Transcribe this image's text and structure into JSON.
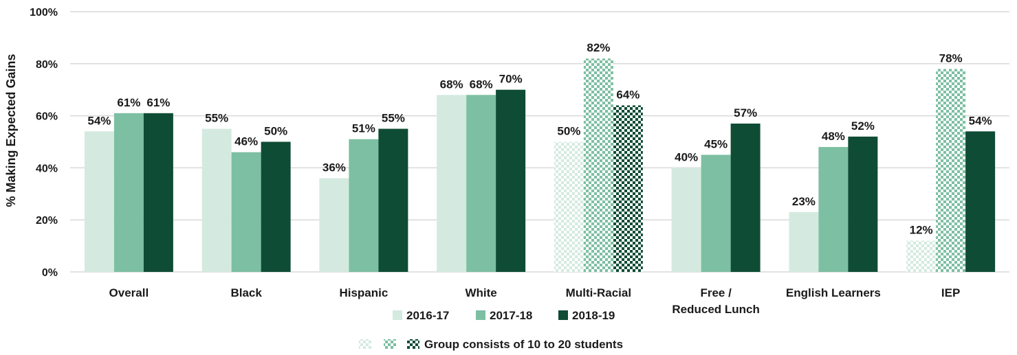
{
  "chart_data": {
    "type": "bar",
    "title": "",
    "xlabel": "",
    "ylabel": "% Making Expected Gains",
    "ylim": [
      0,
      100
    ],
    "yticks": [
      "0%",
      "20%",
      "40%",
      "60%",
      "80%",
      "100%"
    ],
    "grid": true,
    "categories": [
      "Overall",
      "Black",
      "Hispanic",
      "White",
      "Multi-Racial",
      "Free / Reduced Lunch",
      "English Learners",
      "IEP"
    ],
    "series": [
      {
        "name": "2016-17",
        "color": "#d4eae0",
        "values": [
          54,
          55,
          36,
          68,
          50,
          40,
          23,
          12
        ],
        "labels": [
          "54%",
          "55%",
          "36%",
          "68%",
          "50%",
          "40%",
          "23%",
          "12%"
        ],
        "small_group": [
          false,
          false,
          false,
          false,
          true,
          false,
          false,
          true
        ]
      },
      {
        "name": "2017-18",
        "color": "#7dbfa2",
        "values": [
          61,
          46,
          51,
          68,
          82,
          45,
          48,
          78
        ],
        "labels": [
          "61%",
          "46%",
          "51%",
          "68%",
          "82%",
          "45%",
          "48%",
          "78%"
        ],
        "small_group": [
          false,
          false,
          false,
          false,
          true,
          false,
          false,
          true
        ]
      },
      {
        "name": "2018-19",
        "color": "#0f4c35",
        "values": [
          61,
          50,
          55,
          70,
          64,
          57,
          52,
          54
        ],
        "labels": [
          "61%",
          "50%",
          "55%",
          "70%",
          "64%",
          "57%",
          "52%",
          "54%"
        ],
        "small_group": [
          false,
          false,
          false,
          false,
          true,
          false,
          false,
          false
        ]
      }
    ],
    "legend": {
      "position": "bottom",
      "pattern_note": "Group consists of 10 to 20 students"
    }
  }
}
